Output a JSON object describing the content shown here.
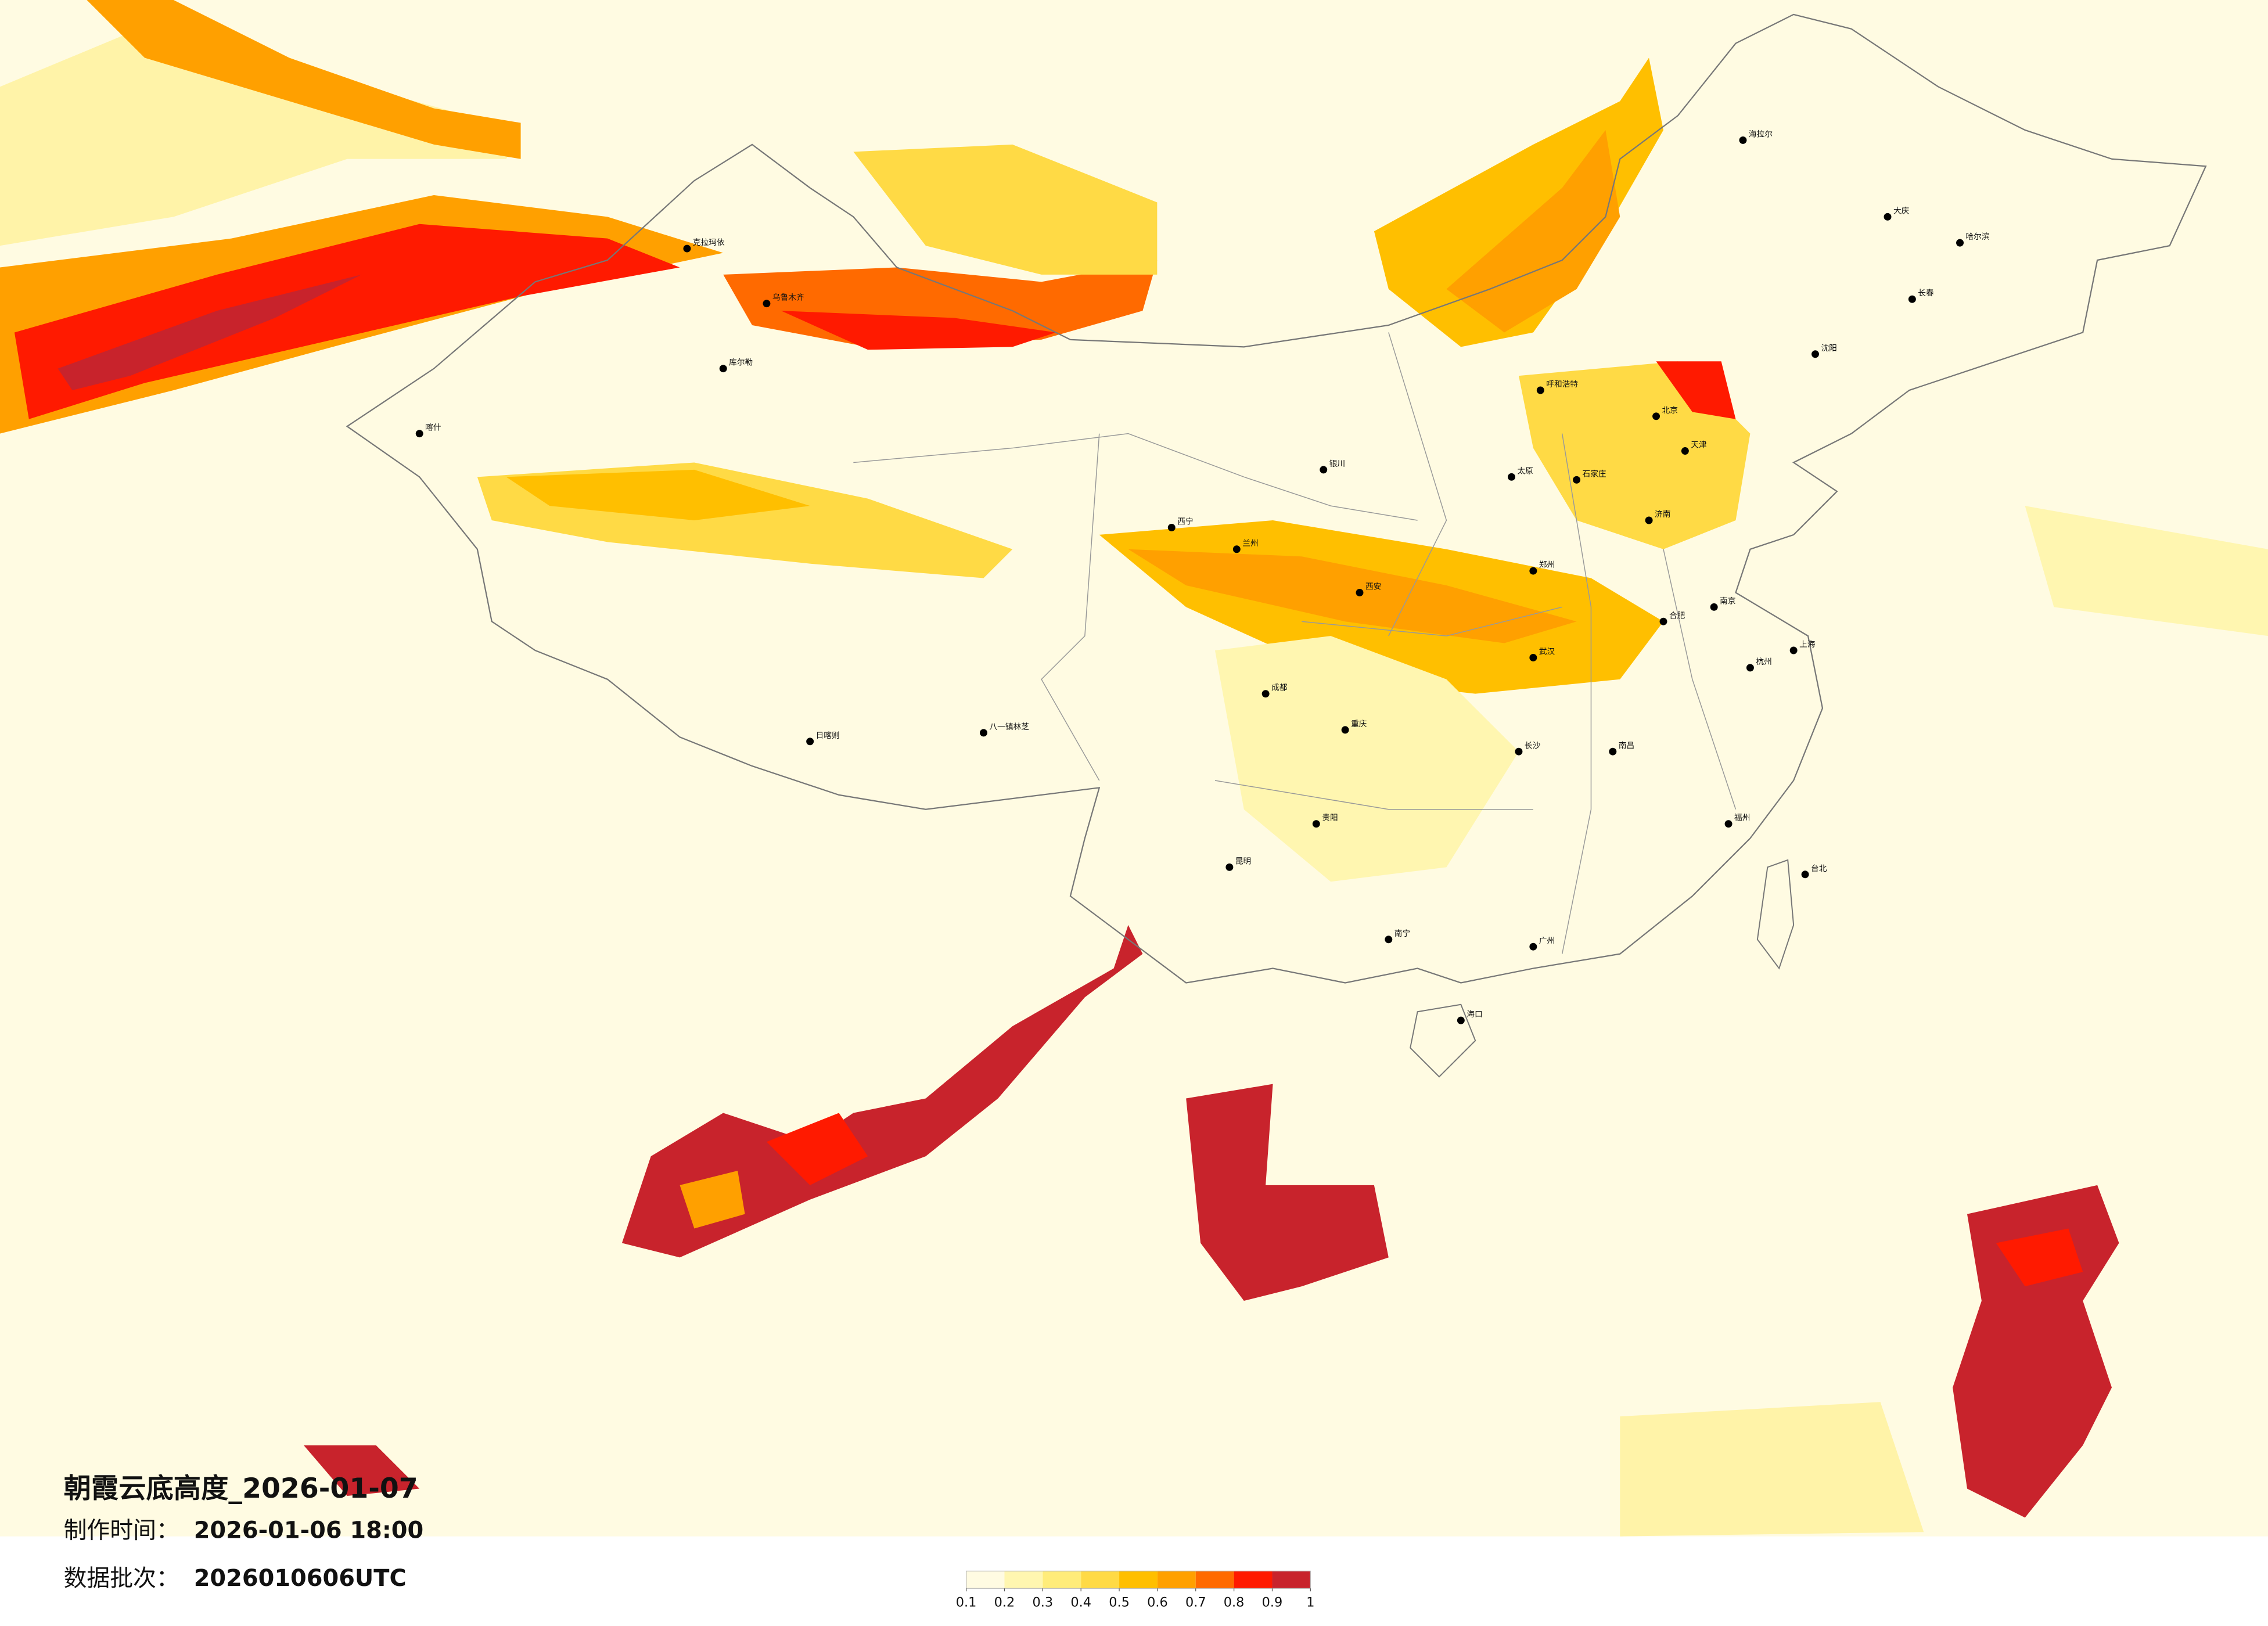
{
  "map": {
    "title": "朝霞云底高度_2026-01-07",
    "production_time": {
      "label": "制作时间：",
      "value": "2026-01-06 18:00"
    },
    "batch": {
      "label": "数据批次：",
      "value": "2026010606UTC"
    },
    "colorbar": {
      "colors": [
        "#fffbe2",
        "#fff6b0",
        "#ffec7a",
        "#ffda45",
        "#ffbf00",
        "#ffa000",
        "#ff6a00",
        "#ff1a00",
        "#c8232c"
      ],
      "ticks": [
        0.1,
        0.2,
        0.3,
        0.4,
        0.5,
        0.6,
        0.7,
        0.8,
        0.9,
        1
      ]
    },
    "cities": [
      "北京",
      "天津",
      "上海",
      "哈尔滨",
      "长春",
      "沈阳",
      "乌鲁木齐",
      "克拉玛依",
      "库尔勒",
      "喀什",
      "日喀则",
      "八一镇林芝",
      "成都",
      "重庆",
      "武汉",
      "广州",
      "昆明",
      "海口",
      "台北",
      "西安",
      "兰州",
      "西宁",
      "银川",
      "呼和浩特",
      "郑州",
      "南京",
      "杭州",
      "福州",
      "南宁",
      "贵阳",
      "长沙",
      "南昌",
      "济南",
      "太原",
      "石家庄",
      "合肥",
      "海拉尔",
      "大庆"
    ]
  }
}
